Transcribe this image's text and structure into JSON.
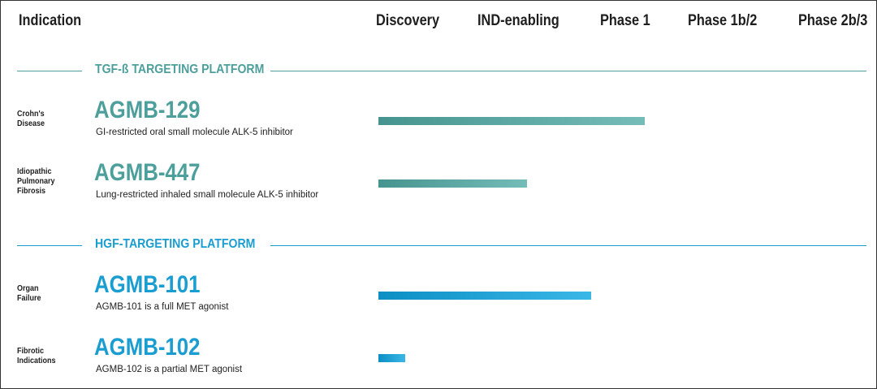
{
  "header": {
    "indication": "Indication",
    "phases": [
      "Discovery",
      "IND-enabling",
      "Phase 1",
      "Phase 1b/2",
      "Phase 2b/3"
    ]
  },
  "sections": [
    {
      "title": "TGF-ß TARGETING PLATFORM",
      "color": "#4d9f9c",
      "bar_colors": [
        "#46948f",
        "#74bcb8"
      ],
      "programs": [
        {
          "indication": "Crohn's\nDisease",
          "name": "AGMB-129",
          "description": "GI-restricted oral small molecule ALK-5 inhibitor",
          "progress": 2.5
        },
        {
          "indication": "Idiopathic\nPulmonary\nFibrosis",
          "name": "AGMB-447",
          "description": "Lung-restricted  inhaled small molecule ALK-5 inhibitor",
          "progress": 1.4
        }
      ]
    },
    {
      "title": "HGF-TARGETING PLATFORM",
      "color": "#1a9dd0",
      "bar_colors": [
        "#0b8fc4",
        "#3bb7e6"
      ],
      "programs": [
        {
          "indication": "Organ\nFailure",
          "name": "AGMB-101",
          "description": "AGMB-101 is a full MET agonist",
          "progress": 2.0
        },
        {
          "indication": "Fibrotic\nIndications",
          "name": "AGMB-102",
          "description": "AGMB-102 is a partial MET agonist",
          "progress": 0.25
        }
      ]
    }
  ]
}
